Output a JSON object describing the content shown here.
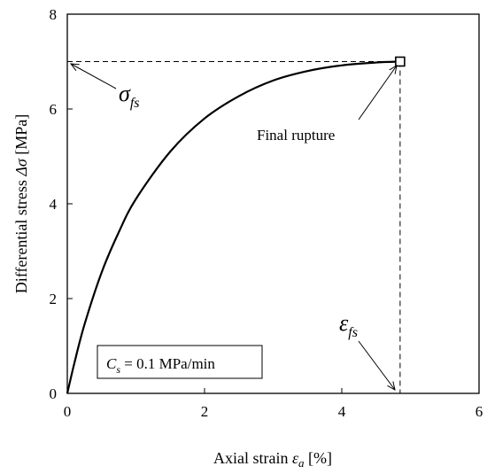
{
  "chart_data": {
    "type": "line",
    "title": "",
    "xlabel": {
      "prefix": "Axial strain ",
      "symbol": "ε",
      "subscript": "a",
      "suffix": " [%]"
    },
    "ylabel": {
      "prefix": "Differential stress ",
      "symbol": "Δσ",
      "suffix": " [MPa]"
    },
    "xlim": [
      0,
      6
    ],
    "ylim": [
      0,
      8
    ],
    "xticks": [
      "0",
      "2",
      "4",
      "6"
    ],
    "yticks": [
      "0",
      "2",
      "4",
      "6",
      "8"
    ],
    "grid": false,
    "series": [
      {
        "line_style": "solid",
        "color": "#000000",
        "x": [
          0,
          0.1,
          0.25,
          0.5,
          0.75,
          1.0,
          1.5,
          2.0,
          2.5,
          3.0,
          3.5,
          4.0,
          4.5,
          4.85
        ],
        "y": [
          0,
          0.62,
          1.45,
          2.55,
          3.4,
          4.1,
          5.1,
          5.8,
          6.27,
          6.6,
          6.8,
          6.92,
          6.98,
          7.0
        ]
      }
    ],
    "final_point": {
      "x": 4.85,
      "y": 7.0,
      "marker": "open-square"
    },
    "annotations": {
      "sigma_fs": {
        "symbol": "σ",
        "subscript": "fs"
      },
      "epsilon_fs": {
        "symbol": "ε",
        "subscript": "fs"
      },
      "final_rupture": "Final rupture",
      "cs_box": {
        "symbol": "C",
        "subscript": "s",
        "text": " = 0.1 MPa/min"
      }
    }
  }
}
